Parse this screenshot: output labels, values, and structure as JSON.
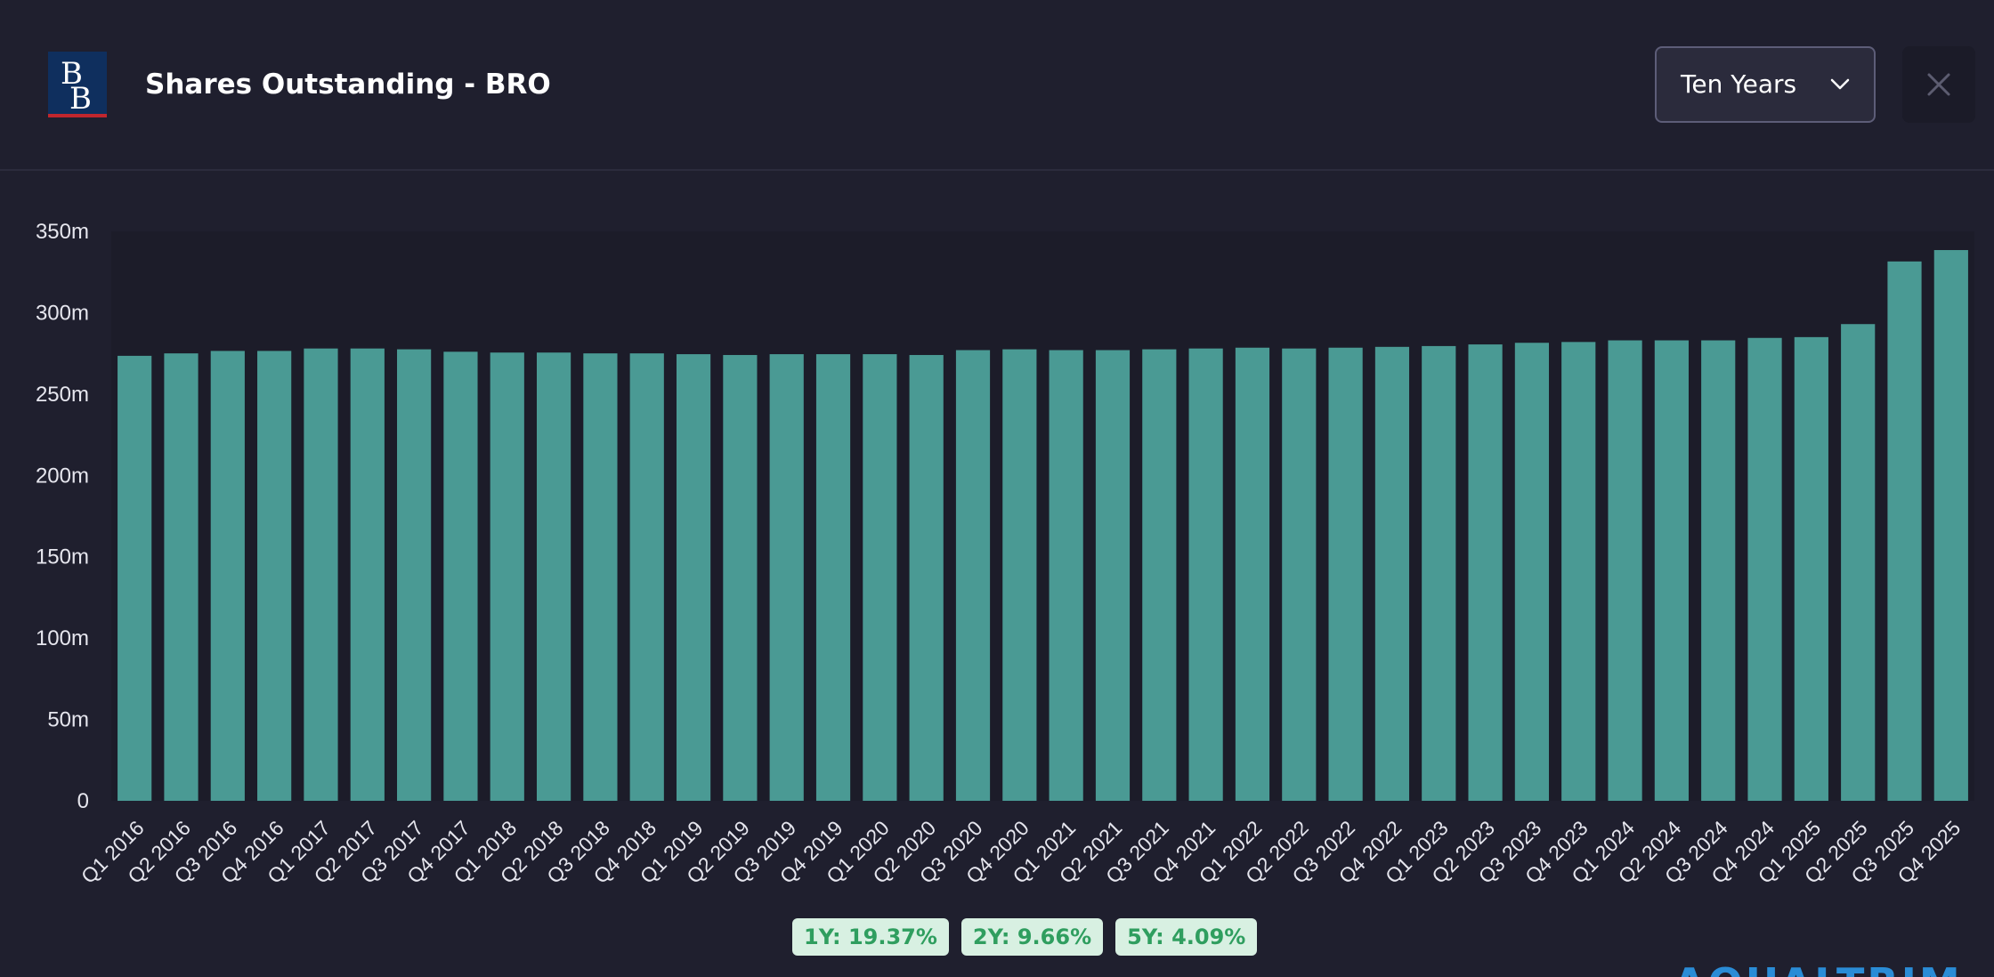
{
  "header": {
    "title": "Shares Outstanding - BRO",
    "logo": {
      "text": "BB",
      "icon": "brand-logo-icon",
      "bg_color": "#0f2f5e",
      "accent_color": "#c0262d"
    },
    "range_select": {
      "selected": "Ten Years",
      "icon": "chevron-down-icon"
    },
    "close_icon": "close-icon"
  },
  "chart_data": {
    "type": "bar",
    "title": "Shares Outstanding - BRO",
    "xlabel": "",
    "ylabel": "",
    "ylim": [
      0,
      350
    ],
    "yticks": [
      "0",
      "50m",
      "100m",
      "150m",
      "200m",
      "250m",
      "300m",
      "350m"
    ],
    "ytick_values": [
      0,
      50,
      100,
      150,
      200,
      250,
      300,
      350
    ],
    "grid": false,
    "bar_color": "#4a9a94",
    "categories": [
      "Q1 2016",
      "Q2 2016",
      "Q3 2016",
      "Q4 2016",
      "Q1 2017",
      "Q2 2017",
      "Q3 2017",
      "Q4 2017",
      "Q1 2018",
      "Q2 2018",
      "Q3 2018",
      "Q4 2018",
      "Q1 2019",
      "Q2 2019",
      "Q3 2019",
      "Q4 2019",
      "Q1 2020",
      "Q2 2020",
      "Q3 2020",
      "Q4 2020",
      "Q1 2021",
      "Q2 2021",
      "Q3 2021",
      "Q4 2021",
      "Q1 2022",
      "Q2 2022",
      "Q3 2022",
      "Q4 2022",
      "Q1 2023",
      "Q2 2023",
      "Q3 2023",
      "Q4 2023",
      "Q1 2024",
      "Q2 2024",
      "Q3 2024",
      "Q4 2024",
      "Q1 2025",
      "Q2 2025",
      "Q3 2025",
      "Q4 2025"
    ],
    "values": [
      273.5,
      275.0,
      276.5,
      276.5,
      278.0,
      278.0,
      277.5,
      276.0,
      275.5,
      275.5,
      275.0,
      275.0,
      274.5,
      274.0,
      274.5,
      274.5,
      274.5,
      274.0,
      277.0,
      277.5,
      277.0,
      277.0,
      277.5,
      278.0,
      278.5,
      278.0,
      278.5,
      279.0,
      279.5,
      280.5,
      281.5,
      282.0,
      283.0,
      283.0,
      283.0,
      284.5,
      285.0,
      293.0,
      331.5,
      338.5
    ]
  },
  "growth_badges": [
    {
      "label": "1Y: 19.37%"
    },
    {
      "label": "2Y: 9.66%"
    },
    {
      "label": "5Y: 4.09%"
    }
  ],
  "watermark": {
    "text": "AQUALTRIM",
    "color": "#2a8cd6"
  }
}
